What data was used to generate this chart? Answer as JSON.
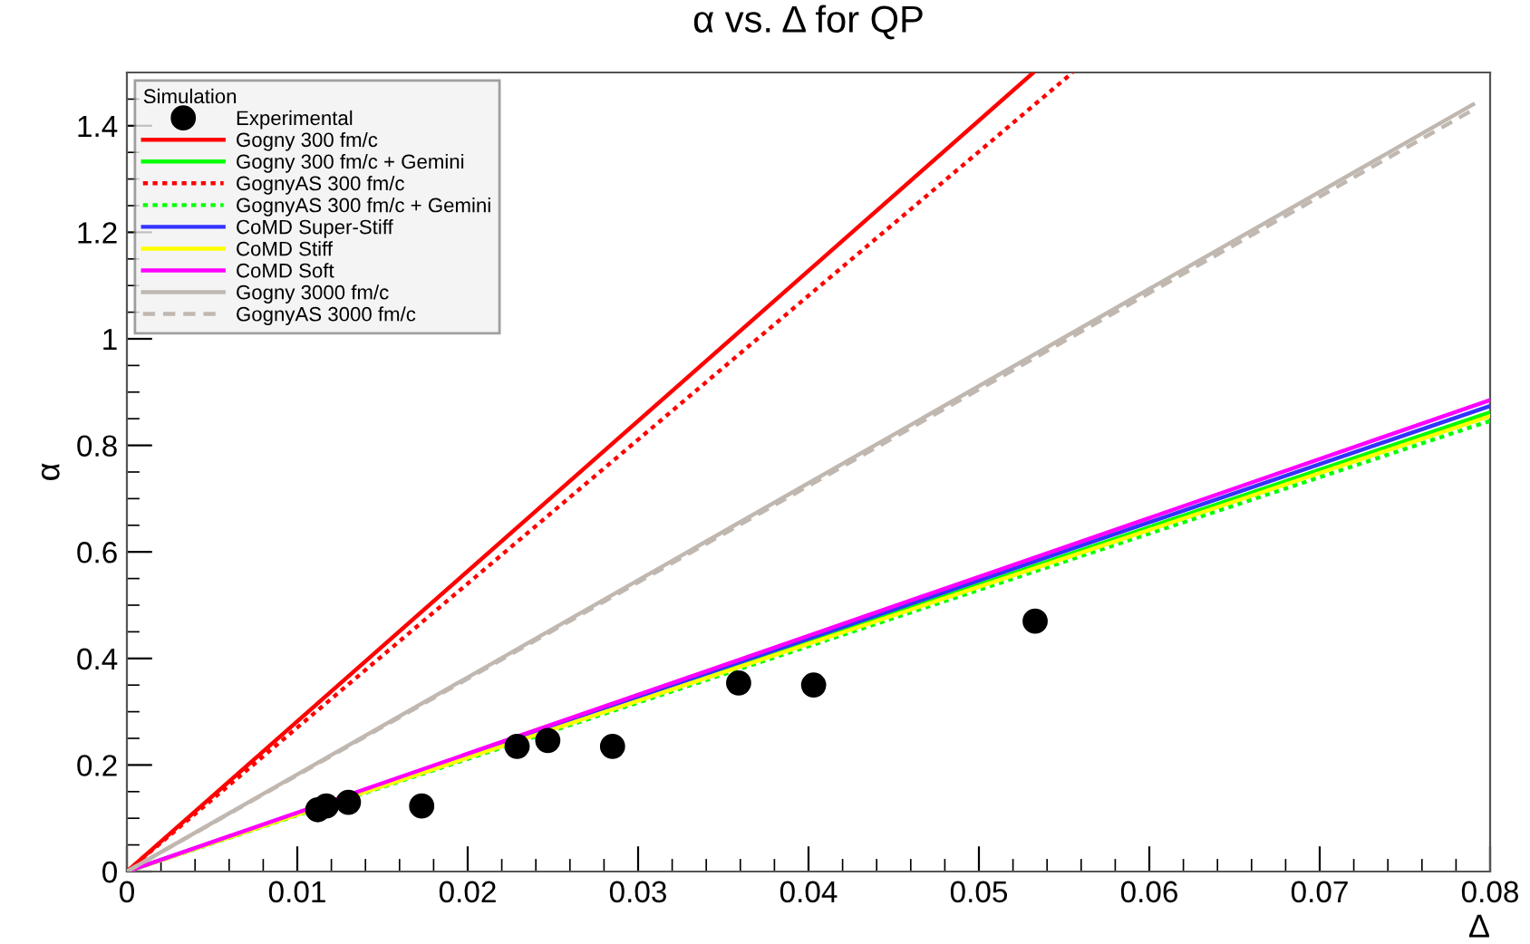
{
  "chart_data": {
    "type": "line",
    "title": "α vs. Δ for QP",
    "xlabel": "Δ",
    "ylabel": "α",
    "legend_title": "Simulation",
    "legend": "top left",
    "grid": false,
    "xlim": [
      0,
      0.08
    ],
    "ylim": [
      0,
      1.5
    ],
    "xticks": [
      0,
      0.01,
      0.02,
      0.03,
      0.04,
      0.05,
      0.06,
      0.07,
      0.08
    ],
    "yticks": [
      0,
      0.2,
      0.4,
      0.6,
      0.8,
      1,
      1.2,
      1.4
    ],
    "series": [
      {
        "name": "Experimental",
        "type": "scatter",
        "marker": "circle",
        "color": "#000000",
        "x": [
          0.0112,
          0.0117,
          0.013,
          0.0173,
          0.0229,
          0.0247,
          0.0285,
          0.0359,
          0.0403,
          0.0533
        ],
        "values": [
          0.116,
          0.123,
          0.13,
          0.123,
          0.235,
          0.246,
          0.235,
          0.354,
          0.35,
          0.47
        ]
      },
      {
        "name": "Gogny 300 fm/c",
        "color": "#ff0000",
        "line_style": "solid",
        "x": [
          0,
          0.0532
        ],
        "values": [
          0,
          1.5
        ]
      },
      {
        "name": "Gogny 300 fm/c + Gemini",
        "color": "#00ff00",
        "line_style": "solid",
        "x": [
          0,
          0.08
        ],
        "values": [
          0,
          0.862
        ]
      },
      {
        "name": "GognyAS 300 fm/c",
        "color": "#ff0000",
        "line_style": "dotted",
        "x": [
          0,
          0.0555
        ],
        "values": [
          0,
          1.5
        ]
      },
      {
        "name": "GognyAS 300 fm/c + Gemini",
        "color": "#00ff00",
        "line_style": "dotted",
        "x": [
          0,
          0.08
        ],
        "values": [
          0,
          0.846
        ]
      },
      {
        "name": "CoMD Super-Stiff",
        "color": "#3333ff",
        "line_style": "solid",
        "x": [
          0,
          0.08
        ],
        "values": [
          0,
          0.874
        ]
      },
      {
        "name": "CoMD Stiff",
        "color": "#ffff00",
        "line_style": "solid",
        "x": [
          0,
          0.08
        ],
        "values": [
          0,
          0.855
        ]
      },
      {
        "name": "CoMD Soft",
        "color": "#ff00ff",
        "line_style": "solid",
        "x": [
          0,
          0.08
        ],
        "values": [
          0,
          0.885
        ]
      },
      {
        "name": "Gogny 3000 fm/c",
        "color": "#c0b8b0",
        "line_style": "solid",
        "x": [
          0,
          0.079
        ],
        "values": [
          0,
          1.44
        ]
      },
      {
        "name": "GognyAS 3000 fm/c",
        "color": "#c0b8b0",
        "line_style": "dashed",
        "x": [
          0,
          0.079
        ],
        "values": [
          0,
          1.43
        ]
      }
    ]
  }
}
